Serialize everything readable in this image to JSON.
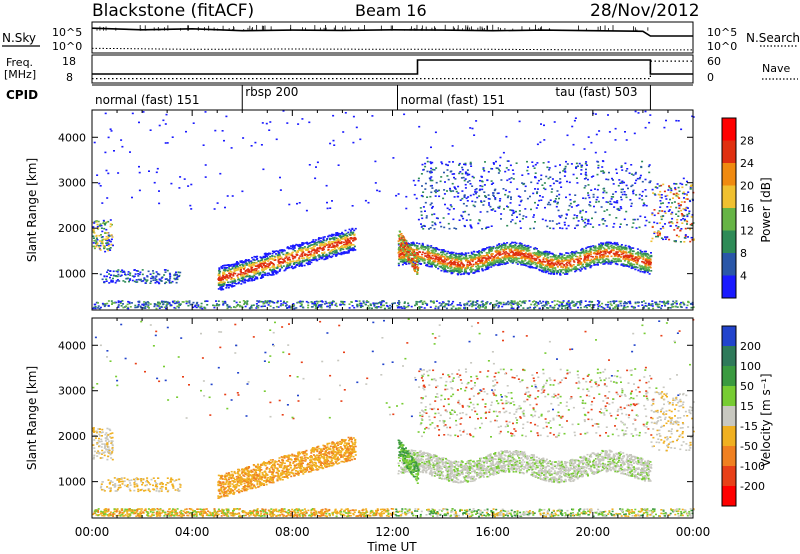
{
  "header": {
    "station": "Blackstone (fitACF)",
    "beam": "Beam 16",
    "date": "28/Nov/2012"
  },
  "left_labels": {
    "nsky": "N.Sky",
    "freq_line1": "Freq.",
    "freq_line2": "[MHz]",
    "cpid": "CPID"
  },
  "right_labels": {
    "nsearch": "N.Search",
    "nave": "Nave"
  },
  "cpid_segments": [
    {
      "label": "normal (fast) 151",
      "start": 0,
      "end": 6
    },
    {
      "label": "rbsp 200",
      "start": 6,
      "end": 12.2
    },
    {
      "label": "normal (fast) 151",
      "start": 12.2,
      "end": 22.3
    },
    {
      "label": "tau (fast) 503",
      "start": 22.3,
      "end": 24
    }
  ],
  "chart_data": [
    {
      "type": "line",
      "name": "noise",
      "left_axis": {
        "label": "N.Sky",
        "ticks": [
          "10^5",
          "10^0"
        ]
      },
      "right_axis": {
        "label": "N.Search",
        "ticks": [
          "10^5",
          "10^0"
        ]
      },
      "series": [
        {
          "name": "N.Sky",
          "style": "solid",
          "x": [
            0,
            2,
            4,
            6,
            8,
            10,
            12,
            14,
            16,
            18,
            20,
            22,
            22.3,
            24
          ],
          "y_frac": [
            0.8,
            0.75,
            0.78,
            0.72,
            0.74,
            0.73,
            0.75,
            0.74,
            0.72,
            0.74,
            0.72,
            0.7,
            0.55,
            0.55
          ]
        },
        {
          "name": "N.Search",
          "style": "dotted",
          "x": [
            0,
            4,
            8,
            12,
            16,
            20,
            22.3,
            24
          ],
          "y_frac": [
            0.15,
            0.12,
            0.13,
            0.12,
            0.12,
            0.1,
            0.1,
            0.1
          ]
        }
      ]
    },
    {
      "type": "line",
      "name": "frequency",
      "left_axis": {
        "label": "Freq. [MHz]",
        "ticks": [
          8,
          18
        ]
      },
      "right_axis": {
        "label": "Nave",
        "ticks": [
          0,
          60
        ]
      },
      "series": [
        {
          "name": "Freq.",
          "style": "solid",
          "x": [
            0,
            13,
            13,
            22.3,
            22.3,
            24
          ],
          "y": [
            10.5,
            10.5,
            17.5,
            17.5,
            10.5,
            10.5
          ]
        },
        {
          "name": "Nave",
          "style": "dotted",
          "x": [
            0,
            22.3,
            22.3,
            24
          ],
          "y": [
            10,
            10,
            50,
            50
          ]
        }
      ]
    },
    {
      "type": "heatmap",
      "name": "power",
      "ylabel": "Slant Range [km]",
      "yticks": [
        1000,
        2000,
        3000,
        4000
      ],
      "ylim": [
        200,
        4600
      ],
      "xlim": [
        0,
        24
      ],
      "colorbar": {
        "label": "Power [dB]",
        "ticks": [
          4,
          8,
          12,
          16,
          20,
          24,
          28
        ],
        "colors": [
          "#1a1aff",
          "#2a57a8",
          "#2e8b57",
          "#66b445",
          "#f0c030",
          "#f08a10",
          "#e03010",
          "#ff0000"
        ]
      }
    },
    {
      "type": "heatmap",
      "name": "velocity",
      "ylabel": "Slant Range [km]",
      "yticks": [
        1000,
        2000,
        3000,
        4000
      ],
      "ylim": [
        200,
        4600
      ],
      "xlim": [
        0,
        24
      ],
      "xlabel": "Time UT",
      "xticks": [
        "00:00",
        "04:00",
        "08:00",
        "12:00",
        "16:00",
        "20:00",
        "00:00"
      ],
      "colorbar": {
        "label": "Velocity [m s⁻¹]",
        "ticks": [
          200,
          100,
          50,
          15,
          -15,
          -50,
          -100,
          -200
        ],
        "colors": [
          "#2244cc",
          "#2f7a5a",
          "#3a9a40",
          "#77cc33",
          "#c8c8c0",
          "#f0b020",
          "#f08020",
          "#e84018",
          "#ff0000"
        ]
      }
    }
  ]
}
